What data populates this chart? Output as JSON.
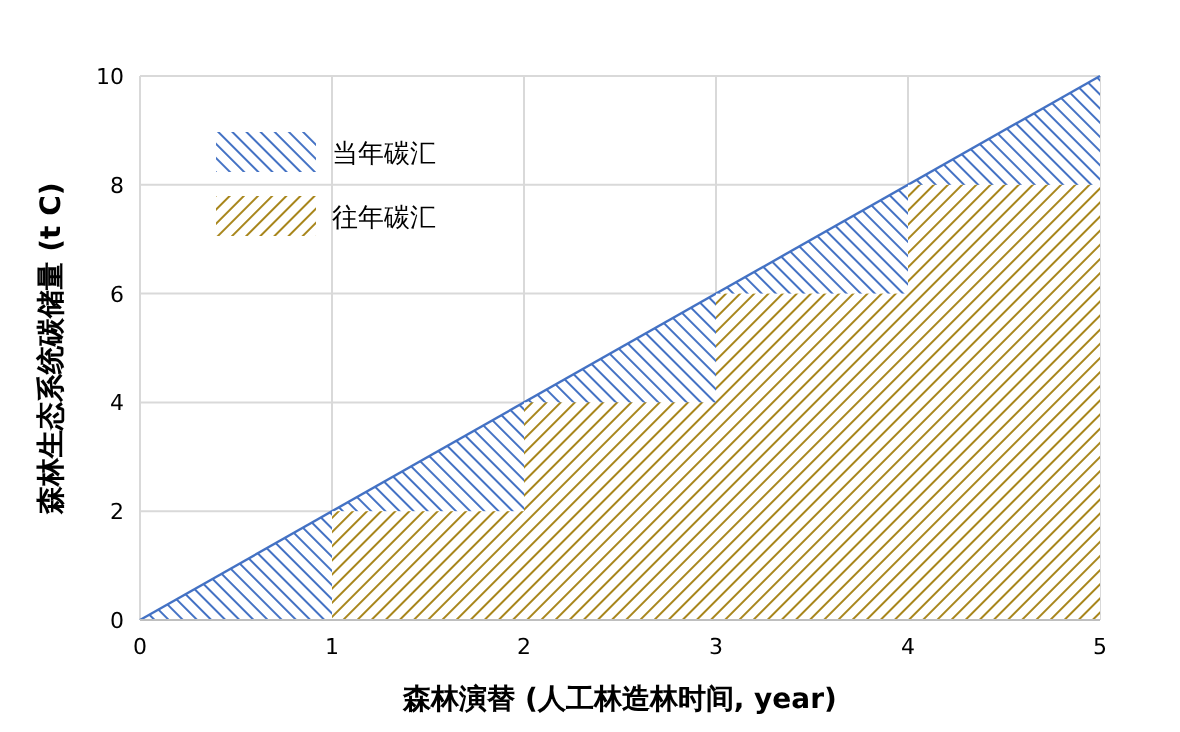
{
  "chart_data": {
    "type": "area",
    "xlabel": "森林演替 (人工林造林时间, year)",
    "ylabel": "森林生态系统碳储量 (t C)",
    "xlim": [
      0,
      5
    ],
    "ylim": [
      0,
      10
    ],
    "xticks": [
      0,
      1,
      2,
      3,
      4,
      5
    ],
    "yticks": [
      0,
      2,
      4,
      6,
      8,
      10
    ],
    "grid": true,
    "legend": "top left",
    "series": [
      {
        "name": "当年碳汇",
        "color": "#4472c4",
        "x": [
          0,
          5
        ],
        "values": [
          0,
          10
        ]
      },
      {
        "name": "往年碳汇",
        "type": "bar",
        "color": "#a8861c",
        "x": [
          1.5,
          2.5,
          3.5,
          4.5
        ],
        "values": [
          2,
          4,
          6,
          8
        ]
      }
    ]
  }
}
